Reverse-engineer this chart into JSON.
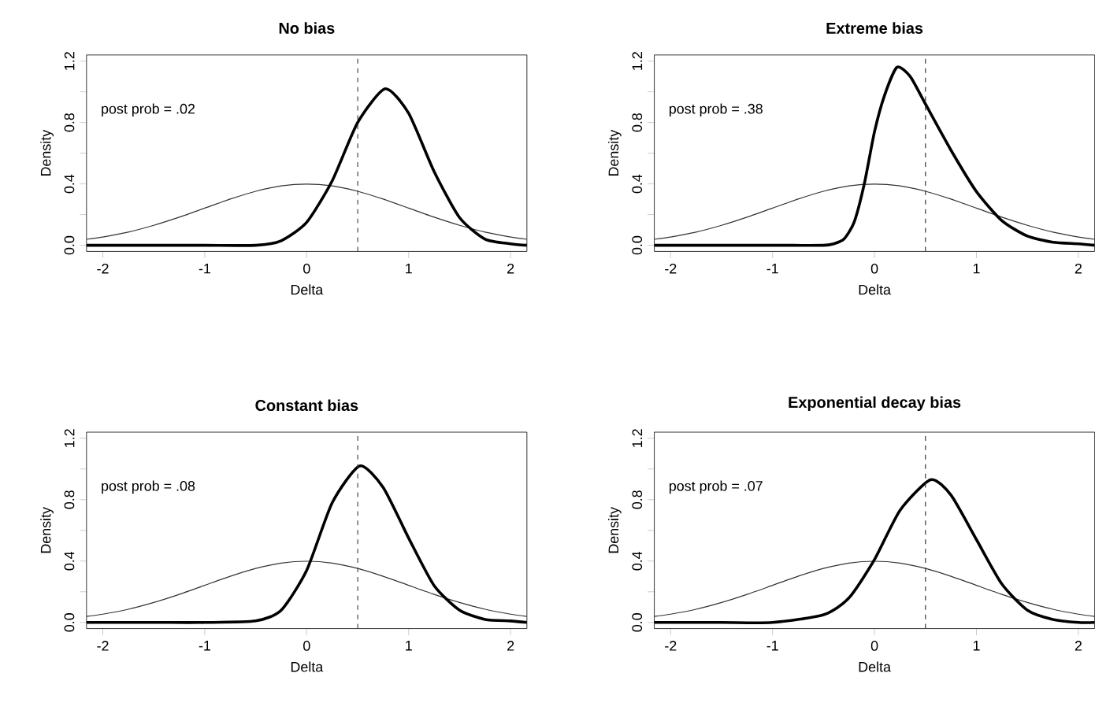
{
  "chart_data": [
    {
      "type": "line",
      "title": "No bias",
      "xlabel": "Delta",
      "ylabel": "Density",
      "xlim": [
        -2.16,
        2.16
      ],
      "ylim": [
        -0.04,
        1.24
      ],
      "xticks": [
        -2,
        -1,
        0,
        1,
        2
      ],
      "yticks": [
        {
          "value": 0,
          "label": "0.0"
        },
        {
          "value": 0.2,
          "label": null
        },
        0.4,
        {
          "value": 0.6,
          "label": null
        },
        0.8,
        {
          "value": 1.0,
          "label": null
        },
        1.2
      ],
      "line_style": "solid",
      "marker": "none",
      "annotations": [
        "post prob = .02"
      ],
      "ref_lines": [
        {
          "axis": "x",
          "value": 0.5,
          "color": "#333333",
          "line_style": "dashed"
        }
      ],
      "series": [
        {
          "color": "#333333",
          "x": [
            -2.16,
            -2,
            -1.75,
            -1.5,
            -1.25,
            -1,
            -0.75,
            -0.5,
            -0.25,
            0,
            0.25,
            0.5,
            0.75,
            1,
            1.25,
            1.5,
            1.75,
            2,
            2.16
          ],
          "values": [
            0.039,
            0.054,
            0.086,
            0.13,
            0.183,
            0.242,
            0.301,
            0.352,
            0.387,
            0.399,
            0.387,
            0.352,
            0.301,
            0.242,
            0.183,
            0.13,
            0.086,
            0.054,
            0.039
          ]
        },
        {
          "color": "#000000",
          "x": [
            -2.16,
            -1.5,
            -1,
            -0.5,
            -0.25,
            0,
            0.25,
            0.5,
            0.77,
            1,
            1.25,
            1.5,
            1.75,
            2,
            2.16
          ],
          "values": [
            0,
            0,
            0,
            0,
            0.03,
            0.15,
            0.42,
            0.8,
            1.02,
            0.86,
            0.48,
            0.18,
            0.04,
            0.01,
            0
          ]
        }
      ]
    },
    {
      "type": "line",
      "title": "Extreme bias",
      "xlabel": "Delta",
      "ylabel": "Density",
      "xlim": [
        -2.16,
        2.16
      ],
      "ylim": [
        -0.04,
        1.24
      ],
      "xticks": [
        -2,
        -1,
        0,
        1,
        2
      ],
      "yticks": [
        {
          "value": 0,
          "label": "0.0"
        },
        {
          "value": 0.2,
          "label": null
        },
        0.4,
        {
          "value": 0.6,
          "label": null
        },
        0.8,
        {
          "value": 1.0,
          "label": null
        },
        1.2
      ],
      "line_style": "solid",
      "marker": "none",
      "annotations": [
        "post prob = .38"
      ],
      "ref_lines": [
        {
          "axis": "x",
          "value": 0.5,
          "color": "#333333",
          "line_style": "dashed"
        }
      ],
      "series": [
        {
          "color": "#333333",
          "x": [
            -2.16,
            -2,
            -1.75,
            -1.5,
            -1.25,
            -1,
            -0.75,
            -0.5,
            -0.25,
            0,
            0.25,
            0.5,
            0.75,
            1,
            1.25,
            1.5,
            1.75,
            2,
            2.16
          ],
          "values": [
            0.039,
            0.054,
            0.086,
            0.13,
            0.183,
            0.242,
            0.301,
            0.352,
            0.387,
            0.399,
            0.387,
            0.352,
            0.301,
            0.242,
            0.183,
            0.13,
            0.086,
            0.054,
            0.039
          ]
        },
        {
          "color": "#000000",
          "x": [
            -2.16,
            -1,
            -0.5,
            -0.4,
            -0.3,
            -0.2,
            -0.1,
            0,
            0.1,
            0.22,
            0.35,
            0.5,
            0.75,
            1,
            1.25,
            1.5,
            1.75,
            2,
            2.16
          ],
          "values": [
            0,
            0,
            0,
            0.01,
            0.04,
            0.15,
            0.4,
            0.74,
            0.98,
            1.16,
            1.1,
            0.92,
            0.62,
            0.35,
            0.16,
            0.06,
            0.02,
            0.01,
            0
          ]
        }
      ]
    },
    {
      "type": "line",
      "title": "Constant bias",
      "xlabel": "Delta",
      "ylabel": "Density",
      "xlim": [
        -2.16,
        2.16
      ],
      "ylim": [
        -0.04,
        1.24
      ],
      "xticks": [
        -2,
        -1,
        0,
        1,
        2
      ],
      "yticks": [
        {
          "value": 0,
          "label": "0.0"
        },
        {
          "value": 0.2,
          "label": null
        },
        0.4,
        {
          "value": 0.6,
          "label": null
        },
        0.8,
        {
          "value": 1.0,
          "label": null
        },
        1.2
      ],
      "line_style": "solid",
      "marker": "none",
      "annotations": [
        "post prob = .08"
      ],
      "ref_lines": [
        {
          "axis": "x",
          "value": 0.5,
          "color": "#333333",
          "line_style": "dashed"
        }
      ],
      "series": [
        {
          "color": "#333333",
          "x": [
            -2.16,
            -2,
            -1.75,
            -1.5,
            -1.25,
            -1,
            -0.75,
            -0.5,
            -0.25,
            0,
            0.25,
            0.5,
            0.75,
            1,
            1.25,
            1.5,
            1.75,
            2,
            2.16
          ],
          "values": [
            0.039,
            0.054,
            0.086,
            0.13,
            0.183,
            0.242,
            0.301,
            0.352,
            0.387,
            0.399,
            0.387,
            0.352,
            0.301,
            0.242,
            0.183,
            0.13,
            0.086,
            0.054,
            0.039
          ]
        },
        {
          "color": "#000000",
          "x": [
            -2.16,
            -1.5,
            -1,
            -0.5,
            -0.25,
            0,
            0.25,
            0.52,
            0.75,
            1,
            1.25,
            1.5,
            1.75,
            2,
            2.16
          ],
          "values": [
            0,
            0,
            0,
            0.01,
            0.08,
            0.34,
            0.78,
            1.02,
            0.88,
            0.55,
            0.24,
            0.08,
            0.02,
            0.01,
            0
          ]
        }
      ]
    },
    {
      "type": "line",
      "title": "Exponential decay bias",
      "xlabel": "Delta",
      "ylabel": "Density",
      "xlim": [
        -2.16,
        2.16
      ],
      "ylim": [
        -0.04,
        1.24
      ],
      "xticks": [
        -2,
        -1,
        0,
        1,
        2
      ],
      "yticks": [
        {
          "value": 0,
          "label": "0.0"
        },
        {
          "value": 0.2,
          "label": null
        },
        0.4,
        {
          "value": 0.6,
          "label": null
        },
        0.8,
        {
          "value": 1.0,
          "label": null
        },
        1.2
      ],
      "line_style": "solid",
      "marker": "none",
      "annotations": [
        "post prob = .07"
      ],
      "ref_lines": [
        {
          "axis": "x",
          "value": 0.5,
          "color": "#333333",
          "line_style": "dashed"
        }
      ],
      "series": [
        {
          "color": "#333333",
          "x": [
            -2.16,
            -2,
            -1.75,
            -1.5,
            -1.25,
            -1,
            -0.75,
            -0.5,
            -0.25,
            0,
            0.25,
            0.5,
            0.75,
            1,
            1.25,
            1.5,
            1.75,
            2,
            2.16
          ],
          "values": [
            0.039,
            0.054,
            0.086,
            0.13,
            0.183,
            0.242,
            0.301,
            0.352,
            0.387,
            0.399,
            0.387,
            0.352,
            0.301,
            0.242,
            0.183,
            0.13,
            0.086,
            0.054,
            0.039
          ]
        },
        {
          "color": "#000000",
          "x": [
            -2.16,
            -1.5,
            -1,
            -0.5,
            -0.25,
            0,
            0.25,
            0.55,
            0.75,
            1,
            1.25,
            1.5,
            1.75,
            2,
            2.16
          ],
          "values": [
            0,
            0,
            0,
            0.05,
            0.16,
            0.41,
            0.73,
            0.93,
            0.83,
            0.54,
            0.25,
            0.08,
            0.02,
            0,
            0
          ]
        }
      ]
    }
  ]
}
